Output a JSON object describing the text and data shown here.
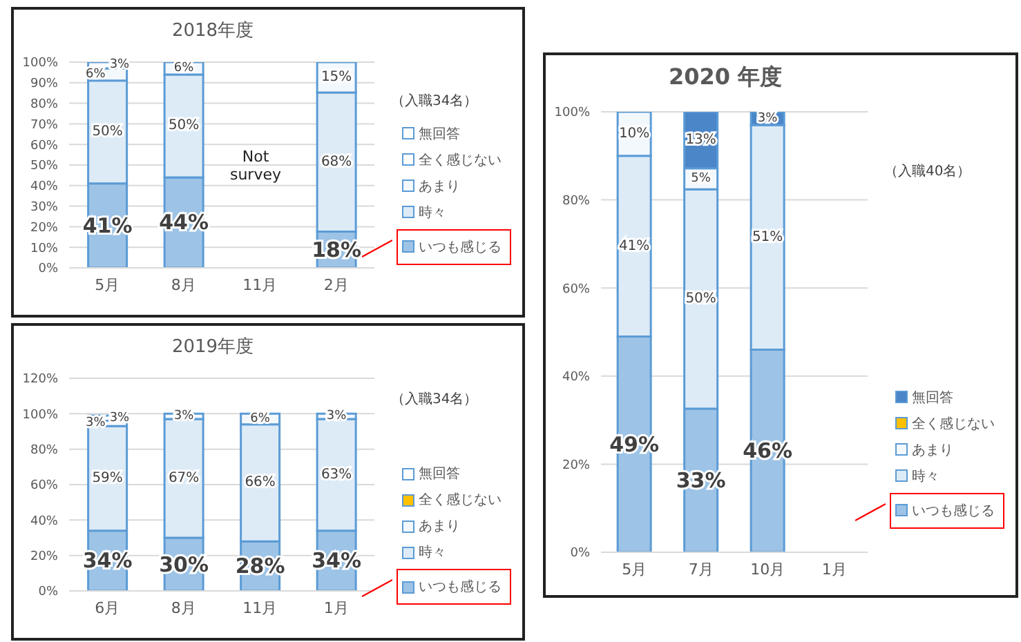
{
  "chart_data": [
    {
      "type": "bar",
      "stacked": true,
      "title": "2018年度",
      "legend_title": "（入職34名）",
      "categories": [
        "5月",
        "8月",
        "11月",
        "2月"
      ],
      "series": [
        {
          "name": "いつも感じる",
          "color": "#9dc3e6",
          "values": [
            41,
            44,
            null,
            17.6
          ],
          "value_labels": [
            "41%",
            "44%",
            null,
            "18%"
          ]
        },
        {
          "name": "時々",
          "color": "#ddebf7",
          "values": [
            50,
            50,
            null,
            67.6
          ],
          "value_labels": [
            "50%",
            "50%",
            null,
            "68%"
          ]
        },
        {
          "name": "あまり",
          "color": "#f3f8fd",
          "values": [
            6,
            6,
            null,
            14.8
          ],
          "value_labels": [
            "6%",
            "6%",
            null,
            "15%"
          ]
        },
        {
          "name": "全く感じない",
          "color": "#ffffff",
          "values": [
            null,
            null,
            null,
            null
          ],
          "value_labels": [
            null,
            null,
            null,
            null
          ]
        },
        {
          "name": "無回答",
          "color": "#ffffff",
          "values": [
            3,
            null,
            null,
            null
          ],
          "value_labels": [
            "3%",
            null,
            null,
            null
          ]
        }
      ],
      "ylim": [
        0,
        100
      ],
      "yticks": [
        {
          "value": 0,
          "label": "0%"
        },
        {
          "value": 10,
          "label": "10%"
        },
        {
          "value": 20,
          "label": "20%"
        },
        {
          "value": 30,
          "label": "30%"
        },
        {
          "value": 40,
          "label": "40%"
        },
        {
          "value": 50,
          "label": "50%"
        },
        {
          "value": 60,
          "label": "60%"
        },
        {
          "value": 70,
          "label": "70%"
        },
        {
          "value": 80,
          "label": "80%"
        },
        {
          "value": 90,
          "label": "90%"
        },
        {
          "value": 100,
          "label": "100%"
        }
      ],
      "grid": "y",
      "legend": "right",
      "annotations": [
        "Not survey"
      ]
    },
    {
      "type": "bar",
      "stacked": true,
      "title": "2019年度",
      "legend_title": "（入職34名）",
      "categories": [
        "6月",
        "8月",
        "11月",
        "1月"
      ],
      "series": [
        {
          "name": "いつも感じる",
          "color": "#9dc3e6",
          "values": [
            34,
            30,
            28,
            34
          ],
          "value_labels": [
            "34%",
            "30%",
            "28%",
            "34%"
          ]
        },
        {
          "name": "時々",
          "color": "#ddebf7",
          "values": [
            59,
            67,
            66,
            63
          ],
          "value_labels": [
            "59%",
            "67%",
            "66%",
            "63%"
          ]
        },
        {
          "name": "あまり",
          "color": "#f3f8fd",
          "values": [
            3,
            3,
            6,
            3
          ],
          "value_labels": [
            "3%",
            "3%",
            "6%",
            "3%"
          ]
        },
        {
          "name": "全く感じない",
          "color": "#ffc000",
          "values": [
            null,
            null,
            null,
            null
          ],
          "value_labels": [
            null,
            null,
            null,
            null
          ]
        },
        {
          "name": "無回答",
          "color": "#ffffff",
          "values": [
            3,
            null,
            null,
            null
          ],
          "value_labels": [
            "3%",
            null,
            null,
            null
          ]
        }
      ],
      "ylim": [
        0,
        120
      ],
      "yticks": [
        {
          "value": 0,
          "label": "0%"
        },
        {
          "value": 20,
          "label": "20%"
        },
        {
          "value": 40,
          "label": "40%"
        },
        {
          "value": 60,
          "label": "60%"
        },
        {
          "value": 80,
          "label": "80%"
        },
        {
          "value": 100,
          "label": "100%"
        },
        {
          "value": 120,
          "label": "120%"
        }
      ],
      "grid": "y",
      "legend": "right"
    },
    {
      "type": "bar",
      "stacked": true,
      "title": "2020 年度",
      "legend_title": "（入職40名）",
      "categories": [
        "5月",
        "7月",
        "10月",
        "1月"
      ],
      "series": [
        {
          "name": "いつも感じる",
          "color": "#9dc3e6",
          "values": [
            49,
            32.6,
            46,
            null
          ],
          "value_labels": [
            "49%",
            "33%",
            "46%",
            null
          ]
        },
        {
          "name": "時々",
          "color": "#ddebf7",
          "values": [
            41,
            49.8,
            51,
            null
          ],
          "value_labels": [
            "41%",
            "50%",
            "51%",
            null
          ]
        },
        {
          "name": "あまり",
          "color": "#f3f8fd",
          "values": [
            10,
            4.8,
            null,
            null
          ],
          "value_labels": [
            "10%",
            "5%",
            null,
            null
          ]
        },
        {
          "name": "全く感じない",
          "color": "#ffc000",
          "values": [
            null,
            null,
            null,
            null
          ],
          "value_labels": [
            null,
            null,
            null,
            null
          ]
        },
        {
          "name": "無回答",
          "color": "#4a86c8",
          "values": [
            null,
            12.8,
            3,
            null
          ],
          "value_labels": [
            null,
            "13%",
            "3%",
            null
          ]
        }
      ],
      "ylim": [
        0,
        100
      ],
      "yticks": [
        {
          "value": 0,
          "label": "0%"
        },
        {
          "value": 20,
          "label": "20%"
        },
        {
          "value": 40,
          "label": "40%"
        },
        {
          "value": 60,
          "label": "60%"
        },
        {
          "value": 80,
          "label": "80%"
        },
        {
          "value": 100,
          "label": "100%"
        }
      ],
      "grid": "y",
      "legend": "right"
    }
  ]
}
